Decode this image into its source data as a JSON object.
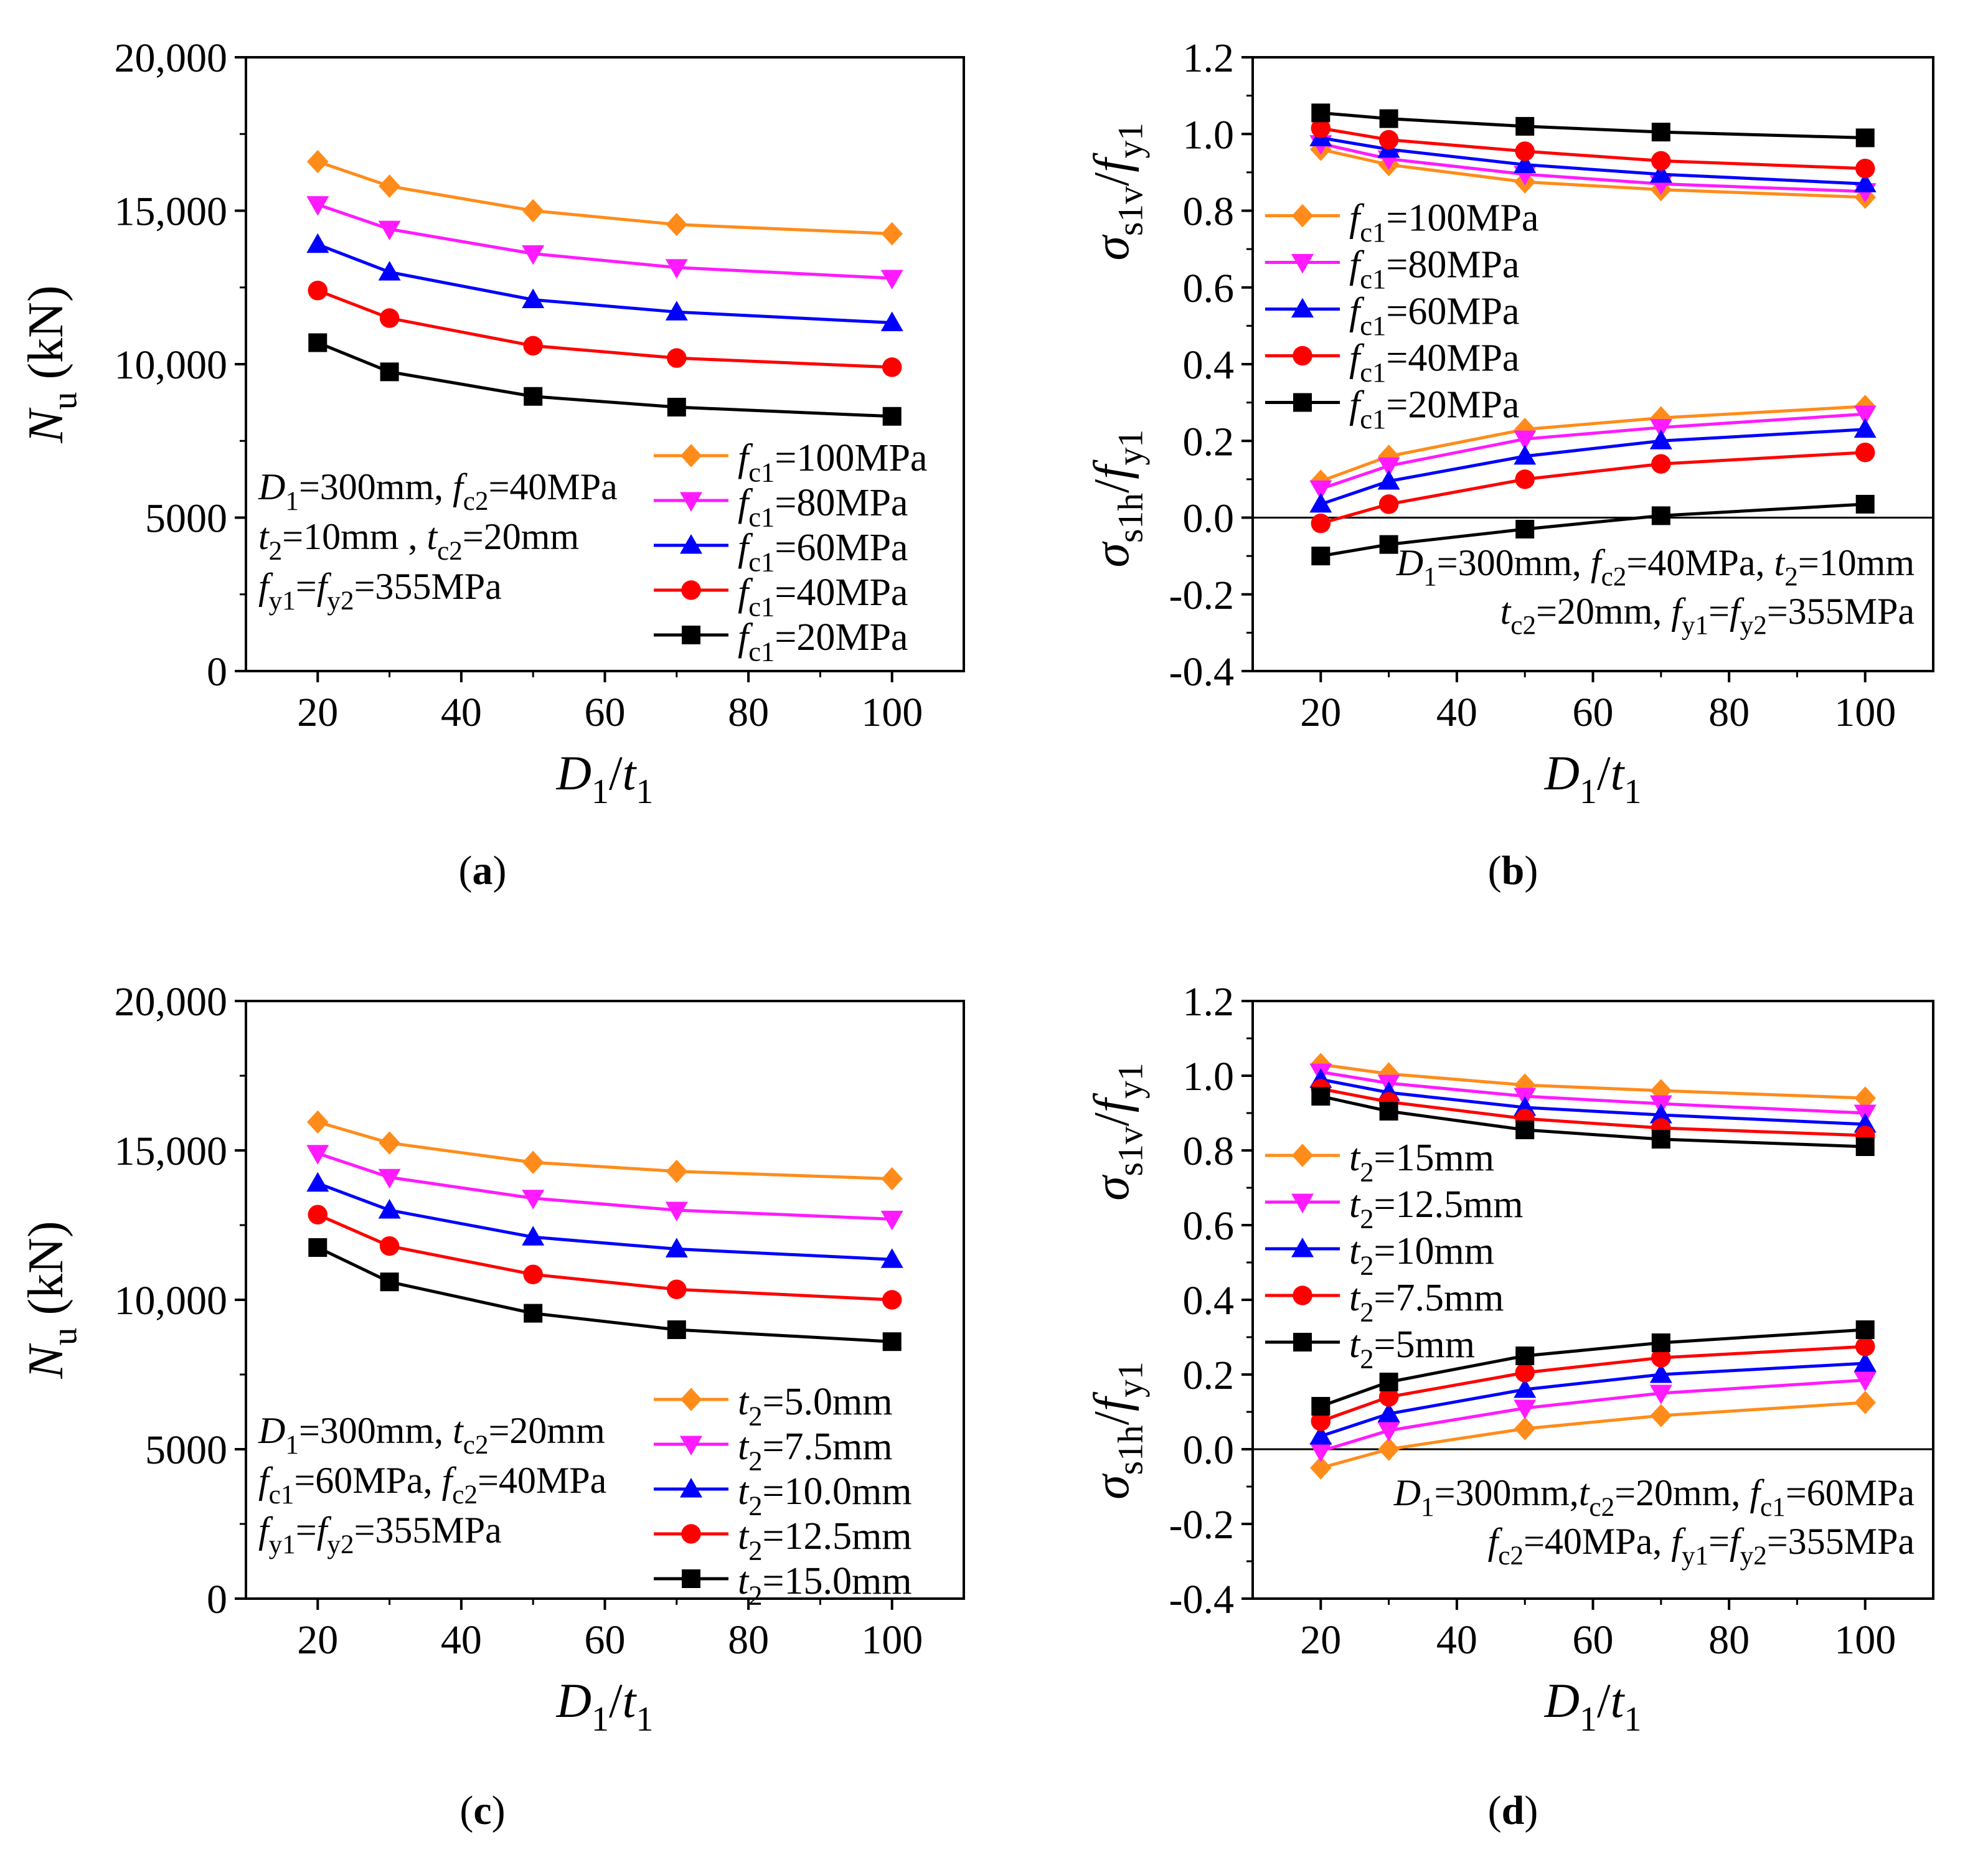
{
  "colors": {
    "orange": "#ff8c1a",
    "magenta": "#ff1aff",
    "blue": "#0000ff",
    "red": "#ff0000",
    "black": "#000000"
  },
  "panels_meta": [
    {
      "caption": "a"
    },
    {
      "caption": "b"
    },
    {
      "caption": "c"
    },
    {
      "caption": "d"
    }
  ],
  "chart_data": [
    {
      "id": "a",
      "type": "line",
      "caption": "(a)",
      "xlabel": "D1/t1",
      "ylabel": "Nu (kN)",
      "x": [
        20,
        30,
        50,
        70,
        100
      ],
      "xlim": [
        10,
        110
      ],
      "ylim": [
        0,
        20000
      ],
      "xticks": [
        "20",
        "40",
        "60",
        "80",
        "100"
      ],
      "yticks": [
        "0",
        "5000",
        "10,000",
        "15,000",
        "20,000"
      ],
      "legend_loc": "lower-right",
      "annotation": [
        "D1=300mm, fc2=40MPa",
        "t2=10mm , tc2=20mm",
        "fy1=fy2=355MPa"
      ],
      "series": [
        {
          "name": "fc1=100MPa",
          "color": "orange",
          "marker": "diamond",
          "values": [
            16600,
            15800,
            15000,
            14550,
            14250
          ]
        },
        {
          "name": "fc1=80MPa",
          "color": "magenta",
          "marker": "triangle-down",
          "values": [
            15200,
            14400,
            13600,
            13150,
            12800
          ]
        },
        {
          "name": "fc1=60MPa",
          "color": "blue",
          "marker": "triangle-up",
          "values": [
            13900,
            13000,
            12100,
            11700,
            11350
          ]
        },
        {
          "name": "fc1=40MPa",
          "color": "red",
          "marker": "circle",
          "values": [
            12400,
            11500,
            10600,
            10200,
            9900
          ]
        },
        {
          "name": "fc1=20MPa",
          "color": "black",
          "marker": "square",
          "values": [
            10700,
            9750,
            8950,
            8600,
            8300
          ]
        }
      ]
    },
    {
      "id": "b",
      "type": "line",
      "caption": "(b)",
      "xlabel": "D1/t1",
      "ylabel_top": "σs1v/fy1",
      "ylabel_bottom": "σs1h/fy1",
      "x": [
        20,
        30,
        50,
        70,
        100
      ],
      "xlim": [
        10,
        110
      ],
      "ylim": [
        -0.4,
        1.2
      ],
      "xticks": [
        "20",
        "40",
        "60",
        "80",
        "100"
      ],
      "yticks": [
        "-0.4",
        "-0.2",
        "0.0",
        "0.2",
        "0.4",
        "0.6",
        "0.8",
        "1.0",
        "1.2"
      ],
      "zero_line": true,
      "legend_loc": "middle-left",
      "annotation": [
        "D1=300mm, fc2=40MPa, t2=10mm",
        "tc2=20mm, fy1=fy2=355MPa"
      ],
      "series": [
        {
          "name": "fc1=100MPa",
          "color": "orange",
          "marker": "diamond",
          "vertical": [
            0.96,
            0.92,
            0.875,
            0.855,
            0.835
          ],
          "horizontal": [
            0.095,
            0.16,
            0.23,
            0.26,
            0.29
          ]
        },
        {
          "name": "fc1=80MPa",
          "color": "magenta",
          "marker": "triangle-down",
          "vertical": [
            0.975,
            0.935,
            0.895,
            0.87,
            0.85
          ],
          "horizontal": [
            0.075,
            0.135,
            0.205,
            0.235,
            0.27
          ]
        },
        {
          "name": "fc1=60MPa",
          "color": "blue",
          "marker": "triangle-up",
          "vertical": [
            0.99,
            0.96,
            0.92,
            0.895,
            0.87
          ],
          "horizontal": [
            0.035,
            0.095,
            0.16,
            0.2,
            0.23
          ]
        },
        {
          "name": "fc1=40MPa",
          "color": "red",
          "marker": "circle",
          "vertical": [
            1.015,
            0.985,
            0.955,
            0.93,
            0.91
          ],
          "horizontal": [
            -0.015,
            0.035,
            0.1,
            0.14,
            0.17
          ]
        },
        {
          "name": "fc1=20MPa",
          "color": "black",
          "marker": "square",
          "vertical": [
            1.055,
            1.04,
            1.02,
            1.005,
            0.99
          ],
          "horizontal": [
            -0.1,
            -0.07,
            -0.03,
            0.005,
            0.035
          ]
        }
      ]
    },
    {
      "id": "c",
      "type": "line",
      "caption": "(c)",
      "xlabel": "D1/t1",
      "ylabel": "Nu (kN)",
      "x": [
        20,
        30,
        50,
        70,
        100
      ],
      "xlim": [
        10,
        110
      ],
      "ylim": [
        0,
        20000
      ],
      "xticks": [
        "20",
        "40",
        "60",
        "80",
        "100"
      ],
      "yticks": [
        "0",
        "5000",
        "10,000",
        "15,000",
        "20,000"
      ],
      "legend_loc": "lower-right",
      "annotation": [
        "D1=300mm, tc2=20mm",
        "fc1=60MPa, fc2=40MPa",
        "fy1=fy2=355MPa"
      ],
      "series": [
        {
          "name": "t2=5.0mm",
          "color": "orange",
          "marker": "diamond",
          "values": [
            15950,
            15250,
            14600,
            14300,
            14050
          ]
        },
        {
          "name": "t2=7.5mm",
          "color": "magenta",
          "marker": "triangle-down",
          "values": [
            14900,
            14100,
            13400,
            13000,
            12700
          ]
        },
        {
          "name": "t2=10.0mm",
          "color": "blue",
          "marker": "triangle-up",
          "values": [
            13900,
            13000,
            12100,
            11700,
            11350
          ]
        },
        {
          "name": "t2=12.5mm",
          "color": "red",
          "marker": "circle",
          "values": [
            12850,
            11800,
            10850,
            10350,
            10000
          ]
        },
        {
          "name": "t2=15.0mm",
          "color": "black",
          "marker": "square",
          "values": [
            11750,
            10600,
            9550,
            9000,
            8600
          ]
        }
      ]
    },
    {
      "id": "d",
      "type": "line",
      "caption": "(d)",
      "xlabel": "D1/t1",
      "ylabel_top": "σs1v/fy1",
      "ylabel_bottom": "σs1h/fy1",
      "x": [
        20,
        30,
        50,
        70,
        100
      ],
      "xlim": [
        10,
        110
      ],
      "ylim": [
        -0.4,
        1.2
      ],
      "xticks": [
        "20",
        "40",
        "60",
        "80",
        "100"
      ],
      "yticks": [
        "-0.4",
        "-0.2",
        "0.0",
        "0.2",
        "0.4",
        "0.6",
        "0.8",
        "1.0",
        "1.2"
      ],
      "zero_line": true,
      "legend_loc": "middle-left",
      "annotation": [
        "D1=300mm,tc2=20mm, fc1=60MPa",
        "fc2=40MPa, fy1=fy2=355MPa"
      ],
      "series": [
        {
          "name": "t2=15mm",
          "color": "orange",
          "marker": "diamond",
          "vertical": [
            1.03,
            1.005,
            0.975,
            0.96,
            0.94
          ],
          "horizontal": [
            -0.05,
            0.0,
            0.055,
            0.09,
            0.125
          ]
        },
        {
          "name": "t2=12.5mm",
          "color": "magenta",
          "marker": "triangle-down",
          "vertical": [
            1.01,
            0.98,
            0.945,
            0.925,
            0.9
          ],
          "horizontal": [
            -0.005,
            0.05,
            0.11,
            0.15,
            0.185
          ]
        },
        {
          "name": "t2=10mm",
          "color": "blue",
          "marker": "triangle-up",
          "vertical": [
            0.99,
            0.955,
            0.915,
            0.895,
            0.87
          ],
          "horizontal": [
            0.035,
            0.095,
            0.16,
            0.2,
            0.23
          ]
        },
        {
          "name": "t2=7.5mm",
          "color": "red",
          "marker": "circle",
          "vertical": [
            0.965,
            0.93,
            0.885,
            0.86,
            0.84
          ],
          "horizontal": [
            0.075,
            0.14,
            0.205,
            0.245,
            0.275
          ]
        },
        {
          "name": "t2=5mm",
          "color": "black",
          "marker": "square",
          "vertical": [
            0.945,
            0.905,
            0.855,
            0.83,
            0.81
          ],
          "horizontal": [
            0.115,
            0.18,
            0.25,
            0.285,
            0.32
          ]
        }
      ]
    }
  ]
}
